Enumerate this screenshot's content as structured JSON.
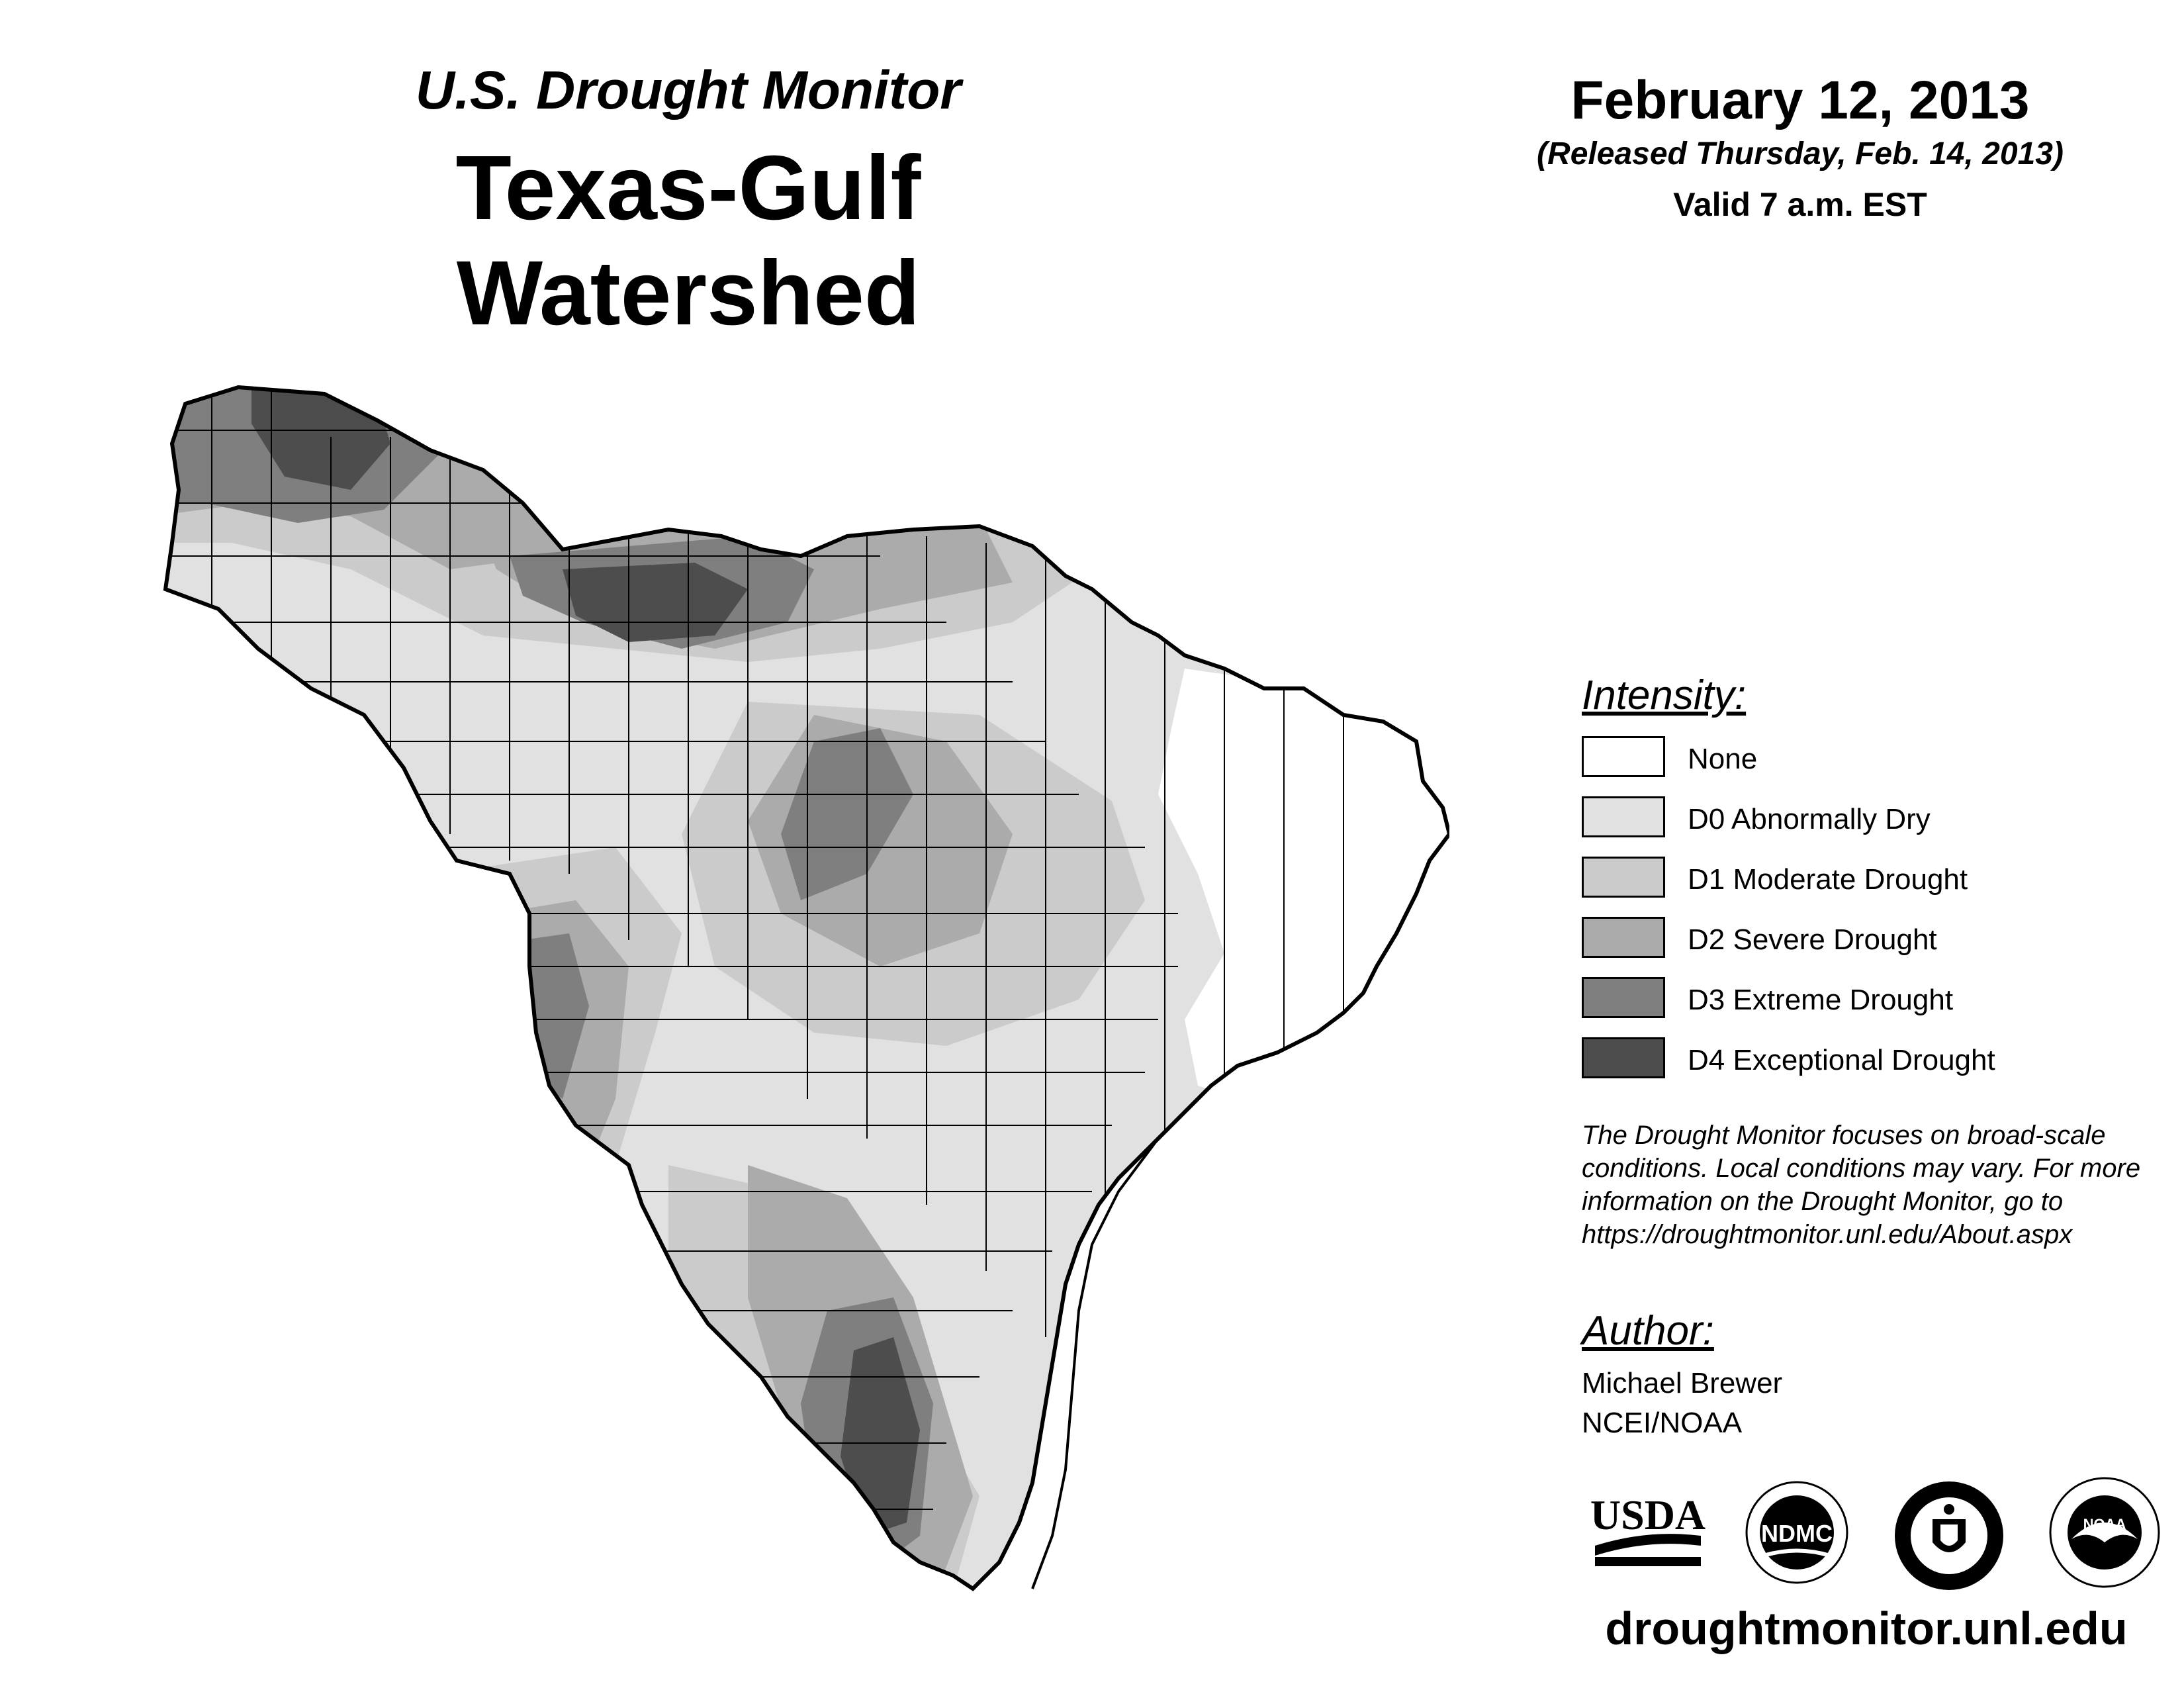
{
  "header": {
    "subtitle": "U.S. Drought Monitor",
    "title": "Texas-Gulf Watershed",
    "date": "February 12, 2013",
    "released": "(Released Thursday, Feb. 14, 2013)",
    "valid": "Valid 7 a.m. EST"
  },
  "legend": {
    "title": "Intensity:",
    "items": [
      {
        "label": "None",
        "color": "#ffffff"
      },
      {
        "label": "D0 Abnormally Dry",
        "color": "#e1e1e1"
      },
      {
        "label": "D1 Moderate Drought",
        "color": "#cbcbcb"
      },
      {
        "label": "D2 Severe Drought",
        "color": "#ababab"
      },
      {
        "label": "D3 Extreme Drought",
        "color": "#7f7f7f"
      },
      {
        "label": "D4 Exceptional Drought",
        "color": "#4d4d4d"
      }
    ]
  },
  "note": {
    "line1": "The Drought Monitor focuses on broad-scale",
    "line2": "conditions. Local conditions may vary. For more",
    "line3": "information on the Drought Monitor, go to",
    "line4": "https://droughtmonitor.unl.edu/About.aspx"
  },
  "author": {
    "title": "Author:",
    "name": "Michael Brewer",
    "org": "NCEI/NOAA"
  },
  "logos": {
    "usda": "USDA",
    "ndmc": "NDMC",
    "commerce": "commerce-seal-icon",
    "noaa": "NOAA"
  },
  "website": "droughtmonitor.unl.edu"
}
